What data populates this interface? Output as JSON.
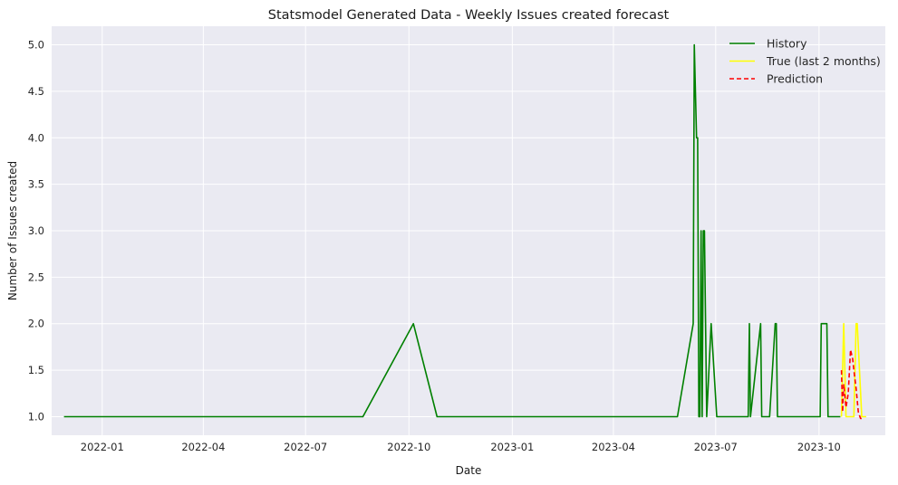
{
  "chart_data": {
    "type": "line",
    "title": "Statsmodel Generated Data - Weekly Issues created forecast",
    "xlabel": "Date",
    "ylabel": "Number of Issues created",
    "x_range": [
      "2021-11-17",
      "2023-11-29"
    ],
    "ylim": [
      0.8,
      5.2
    ],
    "x_ticks": [
      {
        "date": "2022-01-01",
        "label": "2022-01"
      },
      {
        "date": "2022-04-01",
        "label": "2022-04"
      },
      {
        "date": "2022-07-01",
        "label": "2022-07"
      },
      {
        "date": "2022-10-01",
        "label": "2022-10"
      },
      {
        "date": "2023-01-01",
        "label": "2023-01"
      },
      {
        "date": "2023-04-01",
        "label": "2023-04"
      },
      {
        "date": "2023-07-01",
        "label": "2023-07"
      },
      {
        "date": "2023-10-01",
        "label": "2023-10"
      }
    ],
    "y_ticks": [
      {
        "value": 1.0,
        "label": "1.0"
      },
      {
        "value": 1.5,
        "label": "1.5"
      },
      {
        "value": 2.0,
        "label": "2.0"
      },
      {
        "value": 2.5,
        "label": "2.5"
      },
      {
        "value": 3.0,
        "label": "3.0"
      },
      {
        "value": 3.5,
        "label": "3.5"
      },
      {
        "value": 4.0,
        "label": "4.0"
      },
      {
        "value": 4.5,
        "label": "4.5"
      },
      {
        "value": 5.0,
        "label": "5.0"
      }
    ],
    "grid": true,
    "legend_position": "top-right",
    "series": [
      {
        "name": "History",
        "color": "#008000",
        "style": "solid",
        "points": [
          [
            "2021-11-28",
            1
          ],
          [
            "2022-08-21",
            1
          ],
          [
            "2022-10-05",
            2
          ],
          [
            "2022-10-26",
            1
          ],
          [
            "2023-05-28",
            1
          ],
          [
            "2023-06-11",
            2
          ],
          [
            "2023-06-12",
            5
          ],
          [
            "2023-06-14",
            4
          ],
          [
            "2023-06-15",
            4
          ],
          [
            "2023-06-16",
            1
          ],
          [
            "2023-06-17",
            1
          ],
          [
            "2023-06-18",
            3
          ],
          [
            "2023-06-19",
            1
          ],
          [
            "2023-06-20",
            3
          ],
          [
            "2023-06-21",
            3
          ],
          [
            "2023-06-23",
            1
          ],
          [
            "2023-06-27",
            2
          ],
          [
            "2023-07-02",
            1
          ],
          [
            "2023-07-30",
            1
          ],
          [
            "2023-07-31",
            2
          ],
          [
            "2023-08-01",
            1
          ],
          [
            "2023-08-10",
            2
          ],
          [
            "2023-08-11",
            1
          ],
          [
            "2023-08-18",
            1
          ],
          [
            "2023-08-23",
            2
          ],
          [
            "2023-08-24",
            2
          ],
          [
            "2023-08-25",
            1
          ],
          [
            "2023-10-02",
            1
          ],
          [
            "2023-10-03",
            2
          ],
          [
            "2023-10-08",
            2
          ],
          [
            "2023-10-09",
            1
          ],
          [
            "2023-10-20",
            1
          ]
        ]
      },
      {
        "name": "True (last 2 months)",
        "color": "#ffff00",
        "style": "solid",
        "points": [
          [
            "2023-10-21",
            1
          ],
          [
            "2023-10-23",
            2
          ],
          [
            "2023-10-25",
            1
          ],
          [
            "2023-11-01",
            1
          ],
          [
            "2023-11-03",
            2
          ],
          [
            "2023-11-04",
            2
          ],
          [
            "2023-11-06",
            1.5
          ],
          [
            "2023-11-08",
            1
          ],
          [
            "2023-11-12",
            1
          ]
        ]
      },
      {
        "name": "Prediction",
        "color": "#ff0000",
        "style": "dashed",
        "points": [
          [
            "2023-10-21",
            1.5
          ],
          [
            "2023-10-22",
            1.05
          ],
          [
            "2023-10-23",
            1.35
          ],
          [
            "2023-10-25",
            1.1
          ],
          [
            "2023-10-27",
            1.25
          ],
          [
            "2023-10-29",
            1.72
          ],
          [
            "2023-10-31",
            1.62
          ],
          [
            "2023-11-01",
            1.5
          ],
          [
            "2023-11-03",
            1.3
          ],
          [
            "2023-11-05",
            1.05
          ],
          [
            "2023-11-07",
            0.98
          ],
          [
            "2023-11-10",
            0.98
          ]
        ]
      }
    ]
  }
}
